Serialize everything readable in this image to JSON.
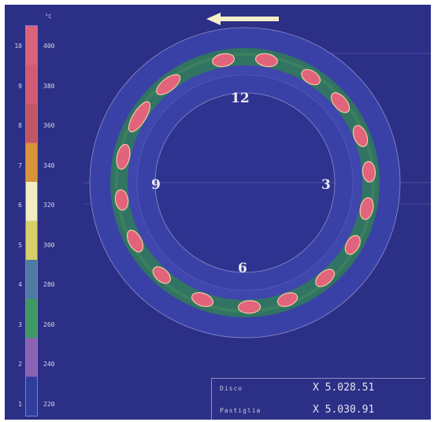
{
  "legend": {
    "unit": "°C",
    "levels": [
      "10",
      "9",
      "8",
      "7",
      "6",
      "5",
      "4",
      "3",
      "2",
      "1"
    ],
    "temps": [
      "400",
      "380",
      "360",
      "340",
      "320",
      "300",
      "280",
      "260",
      "240",
      "220"
    ],
    "colors": [
      "#d8647c",
      "#d25a72",
      "#c25566",
      "#d9933a",
      "#f2ecc2",
      "#d8cf6a",
      "#4f7aa2",
      "#3e9a62",
      "#8a62b6",
      "#2f3d9c"
    ]
  },
  "clock": {
    "top": "12",
    "left": "9",
    "right": "3",
    "bottom": "6"
  },
  "readouts": [
    {
      "label": "Disco",
      "value": "X 5.028.51"
    },
    {
      "label": "Pastiglia",
      "value": "X 5.030.91"
    }
  ],
  "colors": {
    "background": "#2c2f86",
    "ring": "#3a41a6",
    "hot_spot": "#e2637c",
    "warm_band": "#2f7d56",
    "mid_band": "#d2cf7a",
    "arrow": "#f4efc9"
  },
  "icons": {
    "direction": "left-arrow-icon"
  }
}
